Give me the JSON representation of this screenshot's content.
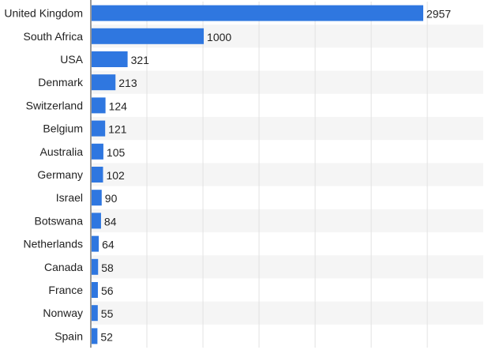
{
  "chart_data": {
    "type": "bar",
    "orientation": "horizontal",
    "categories": [
      "United Kingdom",
      "South Africa",
      "USA",
      "Denmark",
      "Switzerland",
      "Belgium",
      "Australia",
      "Germany",
      "Israel",
      "Botswana",
      "Netherlands",
      "Canada",
      "France",
      "Nonway",
      "Spain"
    ],
    "values": [
      2957,
      1000,
      321,
      213,
      124,
      121,
      105,
      102,
      90,
      84,
      64,
      58,
      56,
      55,
      52
    ],
    "title": "",
    "xlabel": "",
    "ylabel": "",
    "xlim": [
      0,
      3500
    ],
    "grid": true,
    "data_labels": true,
    "legend": "none"
  },
  "colors": {
    "bar": "#2f77e0",
    "stripe": "#f5f5f5",
    "grid": "#e2e2e2",
    "axis": "#333333"
  }
}
